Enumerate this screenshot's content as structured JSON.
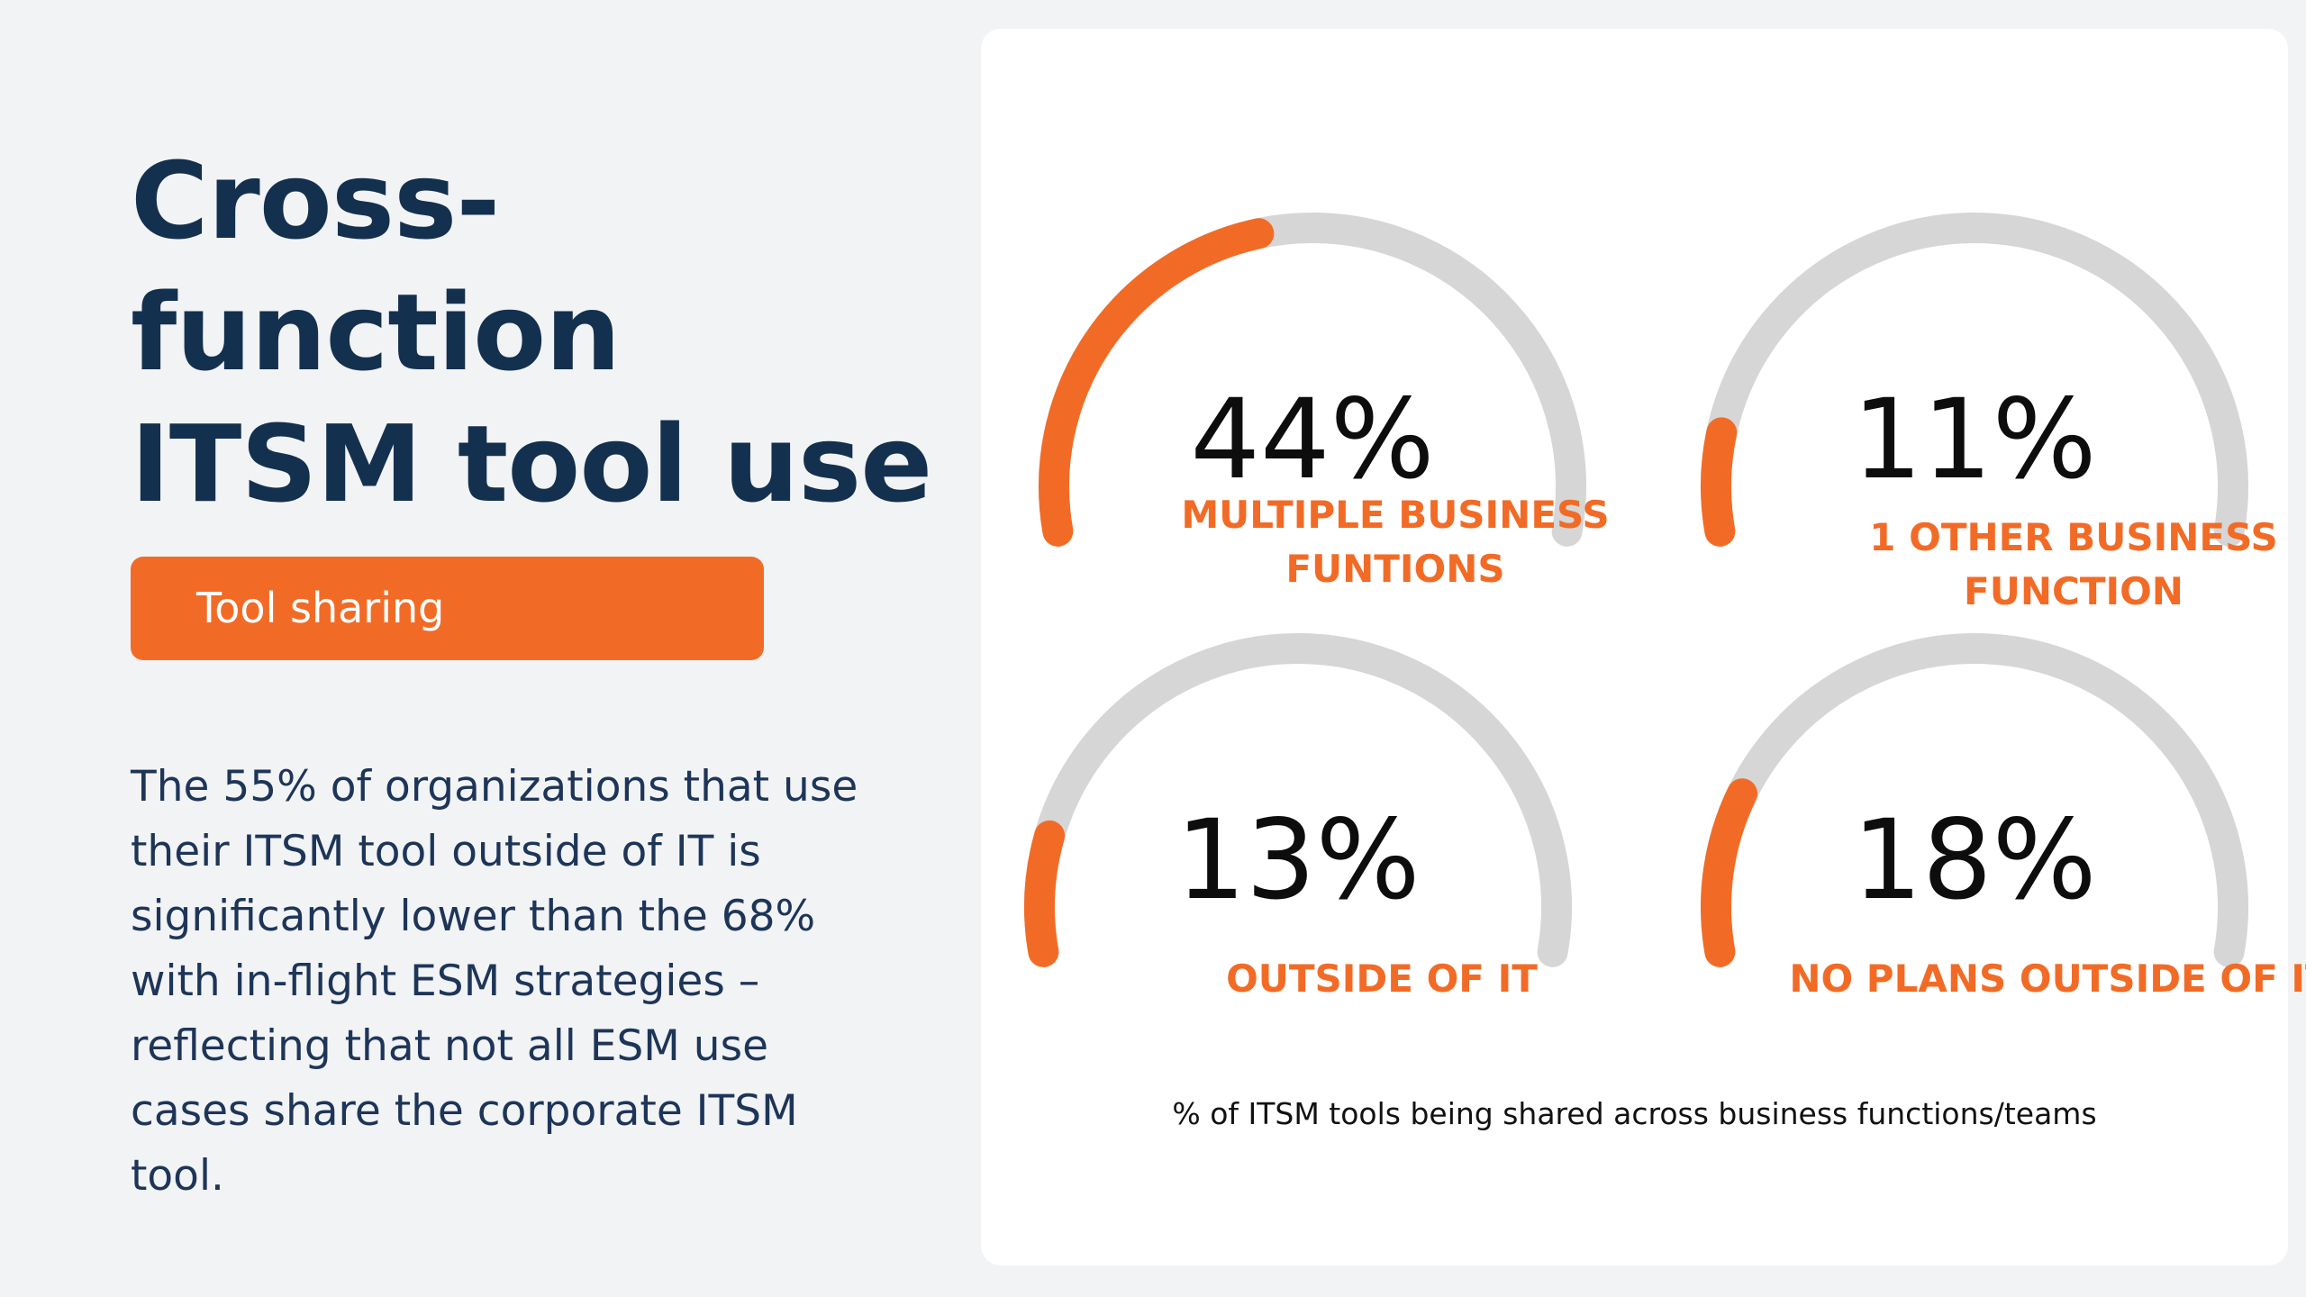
{
  "heading": {
    "lines": [
      "Cross-",
      "function",
      "ITSM tool use"
    ]
  },
  "tag": {
    "label": "Tool sharing"
  },
  "description": "The 55% of organizations that use their ITSM tool outside of IT is significantly lower than the 68% with in-flight ESM strategies – reflecting that not all ESM use cases share the corporate ITSM tool.",
  "colors": {
    "accent": "#f26b26",
    "navy": "#14304f",
    "track": "#d6d6d6",
    "background": "#f2f3f5",
    "card": "#ffffff"
  },
  "chart_data": {
    "type": "gauge",
    "caption": "% of ITSM tools being shared across business functions/teams",
    "series": [
      {
        "value": 44,
        "value_label": "44%",
        "label_lines": [
          "MULTIPLE BUSINESS",
          "FUNTIONS"
        ]
      },
      {
        "value": 11,
        "value_label": "11%",
        "label_lines": [
          "1 OTHER BUSINESS",
          "FUNCTION"
        ]
      },
      {
        "value": 13,
        "value_label": "13%",
        "label_lines": [
          "OUTSIDE OF IT"
        ]
      },
      {
        "value": 18,
        "value_label": "18%",
        "label_lines": [
          "NO PLANS OUTSIDE OF IT"
        ]
      }
    ]
  }
}
